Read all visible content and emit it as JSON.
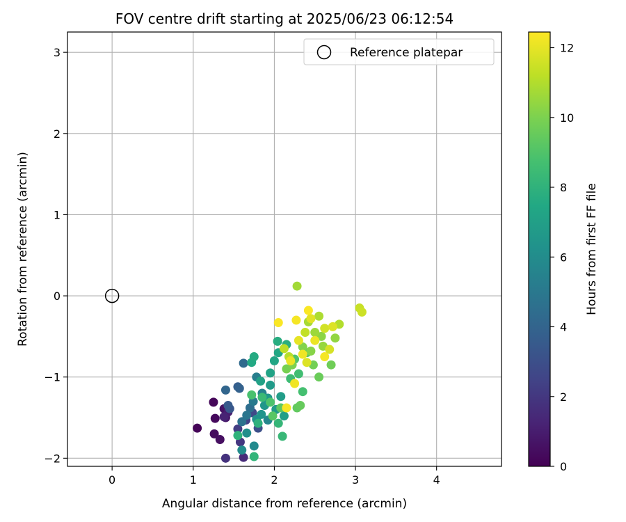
{
  "chart_data": {
    "type": "scatter",
    "title": "FOV centre drift starting at 2025/06/23 06:12:54",
    "xlabel": "Angular distance from reference (arcmin)",
    "ylabel": "Rotation from reference (arcmin)",
    "xlim": [
      -0.55,
      4.8
    ],
    "ylim": [
      -2.1,
      3.25
    ],
    "xticks": [
      0,
      1,
      2,
      3,
      4
    ],
    "yticks": [
      -2,
      -1,
      0,
      1,
      2,
      3
    ],
    "xtick_labels": [
      "0",
      "1",
      "2",
      "3",
      "4"
    ],
    "ytick_labels": [
      "−2",
      "−1",
      "0",
      "1",
      "2",
      "3"
    ],
    "grid": true,
    "legend": {
      "placement": "top-right",
      "entries": [
        {
          "label": "Reference platepar",
          "marker": "open-circle",
          "color": "#000000"
        }
      ]
    },
    "reference_point": {
      "x": 0,
      "y": 0
    },
    "colorbar": {
      "label": "Hours from first FF file",
      "colormap": "viridis",
      "min": 0,
      "max": 12.45,
      "ticks": [
        0,
        2,
        4,
        6,
        8,
        10,
        12
      ],
      "tick_labels": [
        "0",
        "2",
        "4",
        "6",
        "8",
        "10",
        "12"
      ]
    },
    "series": [
      {
        "color_by": "hours",
        "points": [
          [
            1.05,
            -1.63,
            0.1
          ],
          [
            1.25,
            -1.31,
            0.2
          ],
          [
            1.27,
            -1.51,
            0.3
          ],
          [
            1.26,
            -1.7,
            0.4
          ],
          [
            1.33,
            -1.77,
            0.5
          ],
          [
            1.38,
            -1.39,
            0.6
          ],
          [
            1.4,
            -1.5,
            0.8
          ],
          [
            1.43,
            -1.43,
            1.0
          ],
          [
            1.38,
            -1.49,
            1.2
          ],
          [
            1.62,
            -1.99,
            1.5
          ],
          [
            1.4,
            -2.0,
            1.8
          ],
          [
            1.58,
            -1.8,
            2.0
          ],
          [
            1.55,
            -1.64,
            2.2
          ],
          [
            1.65,
            -1.53,
            2.4
          ],
          [
            1.73,
            -1.44,
            2.7
          ],
          [
            1.8,
            -1.63,
            3.0
          ],
          [
            1.45,
            -1.39,
            3.3
          ],
          [
            1.43,
            -1.35,
            3.5
          ],
          [
            1.55,
            -1.12,
            3.7
          ],
          [
            1.57,
            -1.14,
            3.9
          ],
          [
            1.4,
            -1.16,
            4.1
          ],
          [
            1.62,
            -0.83,
            4.3
          ],
          [
            1.7,
            -1.38,
            4.5
          ],
          [
            1.6,
            -1.55,
            4.7
          ],
          [
            1.66,
            -1.47,
            4.9
          ],
          [
            1.74,
            -1.3,
            5.1
          ],
          [
            1.78,
            -1.0,
            5.3
          ],
          [
            1.85,
            -1.2,
            5.5
          ],
          [
            1.92,
            -1.53,
            5.7
          ],
          [
            1.75,
            -1.85,
            5.9
          ],
          [
            1.6,
            -1.9,
            6.0
          ],
          [
            1.66,
            -1.69,
            6.1
          ],
          [
            1.78,
            -1.52,
            6.3
          ],
          [
            1.84,
            -1.46,
            6.4
          ],
          [
            1.88,
            -1.35,
            6.5
          ],
          [
            1.92,
            -1.26,
            6.6
          ],
          [
            1.95,
            -1.1,
            6.7
          ],
          [
            2.02,
            -1.4,
            6.8
          ],
          [
            2.08,
            -1.24,
            6.9
          ],
          [
            2.12,
            -1.48,
            7.0
          ],
          [
            1.83,
            -1.05,
            7.1
          ],
          [
            1.95,
            -0.95,
            7.2
          ],
          [
            2.0,
            -0.8,
            7.3
          ],
          [
            2.05,
            -0.7,
            7.4
          ],
          [
            1.72,
            -0.82,
            7.5
          ],
          [
            1.75,
            -0.75,
            7.6
          ],
          [
            2.04,
            -0.56,
            7.7
          ],
          [
            2.15,
            -0.6,
            7.8
          ],
          [
            1.8,
            -1.57,
            7.9
          ],
          [
            1.55,
            -1.72,
            8.0
          ],
          [
            1.75,
            -1.98,
            8.1
          ],
          [
            2.05,
            -1.57,
            8.2
          ],
          [
            2.1,
            -1.73,
            8.3
          ],
          [
            1.85,
            -1.25,
            8.4
          ],
          [
            2.2,
            -1.02,
            8.5
          ],
          [
            2.3,
            -0.96,
            8.6
          ],
          [
            2.35,
            -1.18,
            8.7
          ],
          [
            1.72,
            -1.22,
            8.8
          ],
          [
            1.95,
            -1.31,
            8.9
          ],
          [
            2.25,
            -0.78,
            9.0
          ],
          [
            2.4,
            -0.7,
            9.1
          ],
          [
            1.98,
            -1.48,
            9.2
          ],
          [
            2.08,
            -1.38,
            9.3
          ],
          [
            2.28,
            -1.38,
            9.4
          ],
          [
            2.32,
            -1.35,
            9.5
          ],
          [
            2.55,
            -1.0,
            9.6
          ],
          [
            2.7,
            -0.85,
            9.7
          ],
          [
            2.48,
            -0.85,
            9.8
          ],
          [
            2.15,
            -0.9,
            9.9
          ],
          [
            2.22,
            -0.85,
            10.0
          ],
          [
            2.35,
            -0.63,
            10.1
          ],
          [
            2.45,
            -0.68,
            10.2
          ],
          [
            2.58,
            -0.5,
            10.3
          ],
          [
            2.75,
            -0.52,
            10.4
          ],
          [
            2.6,
            -0.62,
            10.5
          ],
          [
            2.5,
            -0.45,
            10.6
          ],
          [
            2.28,
            0.12,
            10.7
          ],
          [
            2.42,
            -0.32,
            10.8
          ],
          [
            2.55,
            -0.25,
            10.9
          ],
          [
            2.8,
            -0.35,
            11.0
          ],
          [
            2.18,
            -0.75,
            11.1
          ],
          [
            2.12,
            -0.65,
            11.2
          ],
          [
            2.38,
            -0.45,
            11.3
          ],
          [
            3.05,
            -0.15,
            11.4
          ],
          [
            3.08,
            -0.2,
            11.5
          ],
          [
            2.62,
            -0.4,
            11.6
          ],
          [
            2.68,
            -0.66,
            11.7
          ],
          [
            2.72,
            -0.38,
            11.8
          ],
          [
            2.45,
            -0.28,
            11.9
          ],
          [
            2.3,
            -0.55,
            12.0
          ],
          [
            2.2,
            -0.8,
            12.1
          ],
          [
            2.25,
            -1.08,
            12.2
          ],
          [
            2.15,
            -1.38,
            12.3
          ],
          [
            2.05,
            -0.33,
            12.4
          ],
          [
            2.42,
            -0.18,
            12.4
          ],
          [
            2.35,
            -0.72,
            12.2
          ],
          [
            2.62,
            -0.75,
            12.3
          ],
          [
            2.5,
            -0.55,
            12.1
          ],
          [
            2.27,
            -0.3,
            12.3
          ],
          [
            2.4,
            -0.82,
            11.8
          ]
        ]
      }
    ]
  }
}
